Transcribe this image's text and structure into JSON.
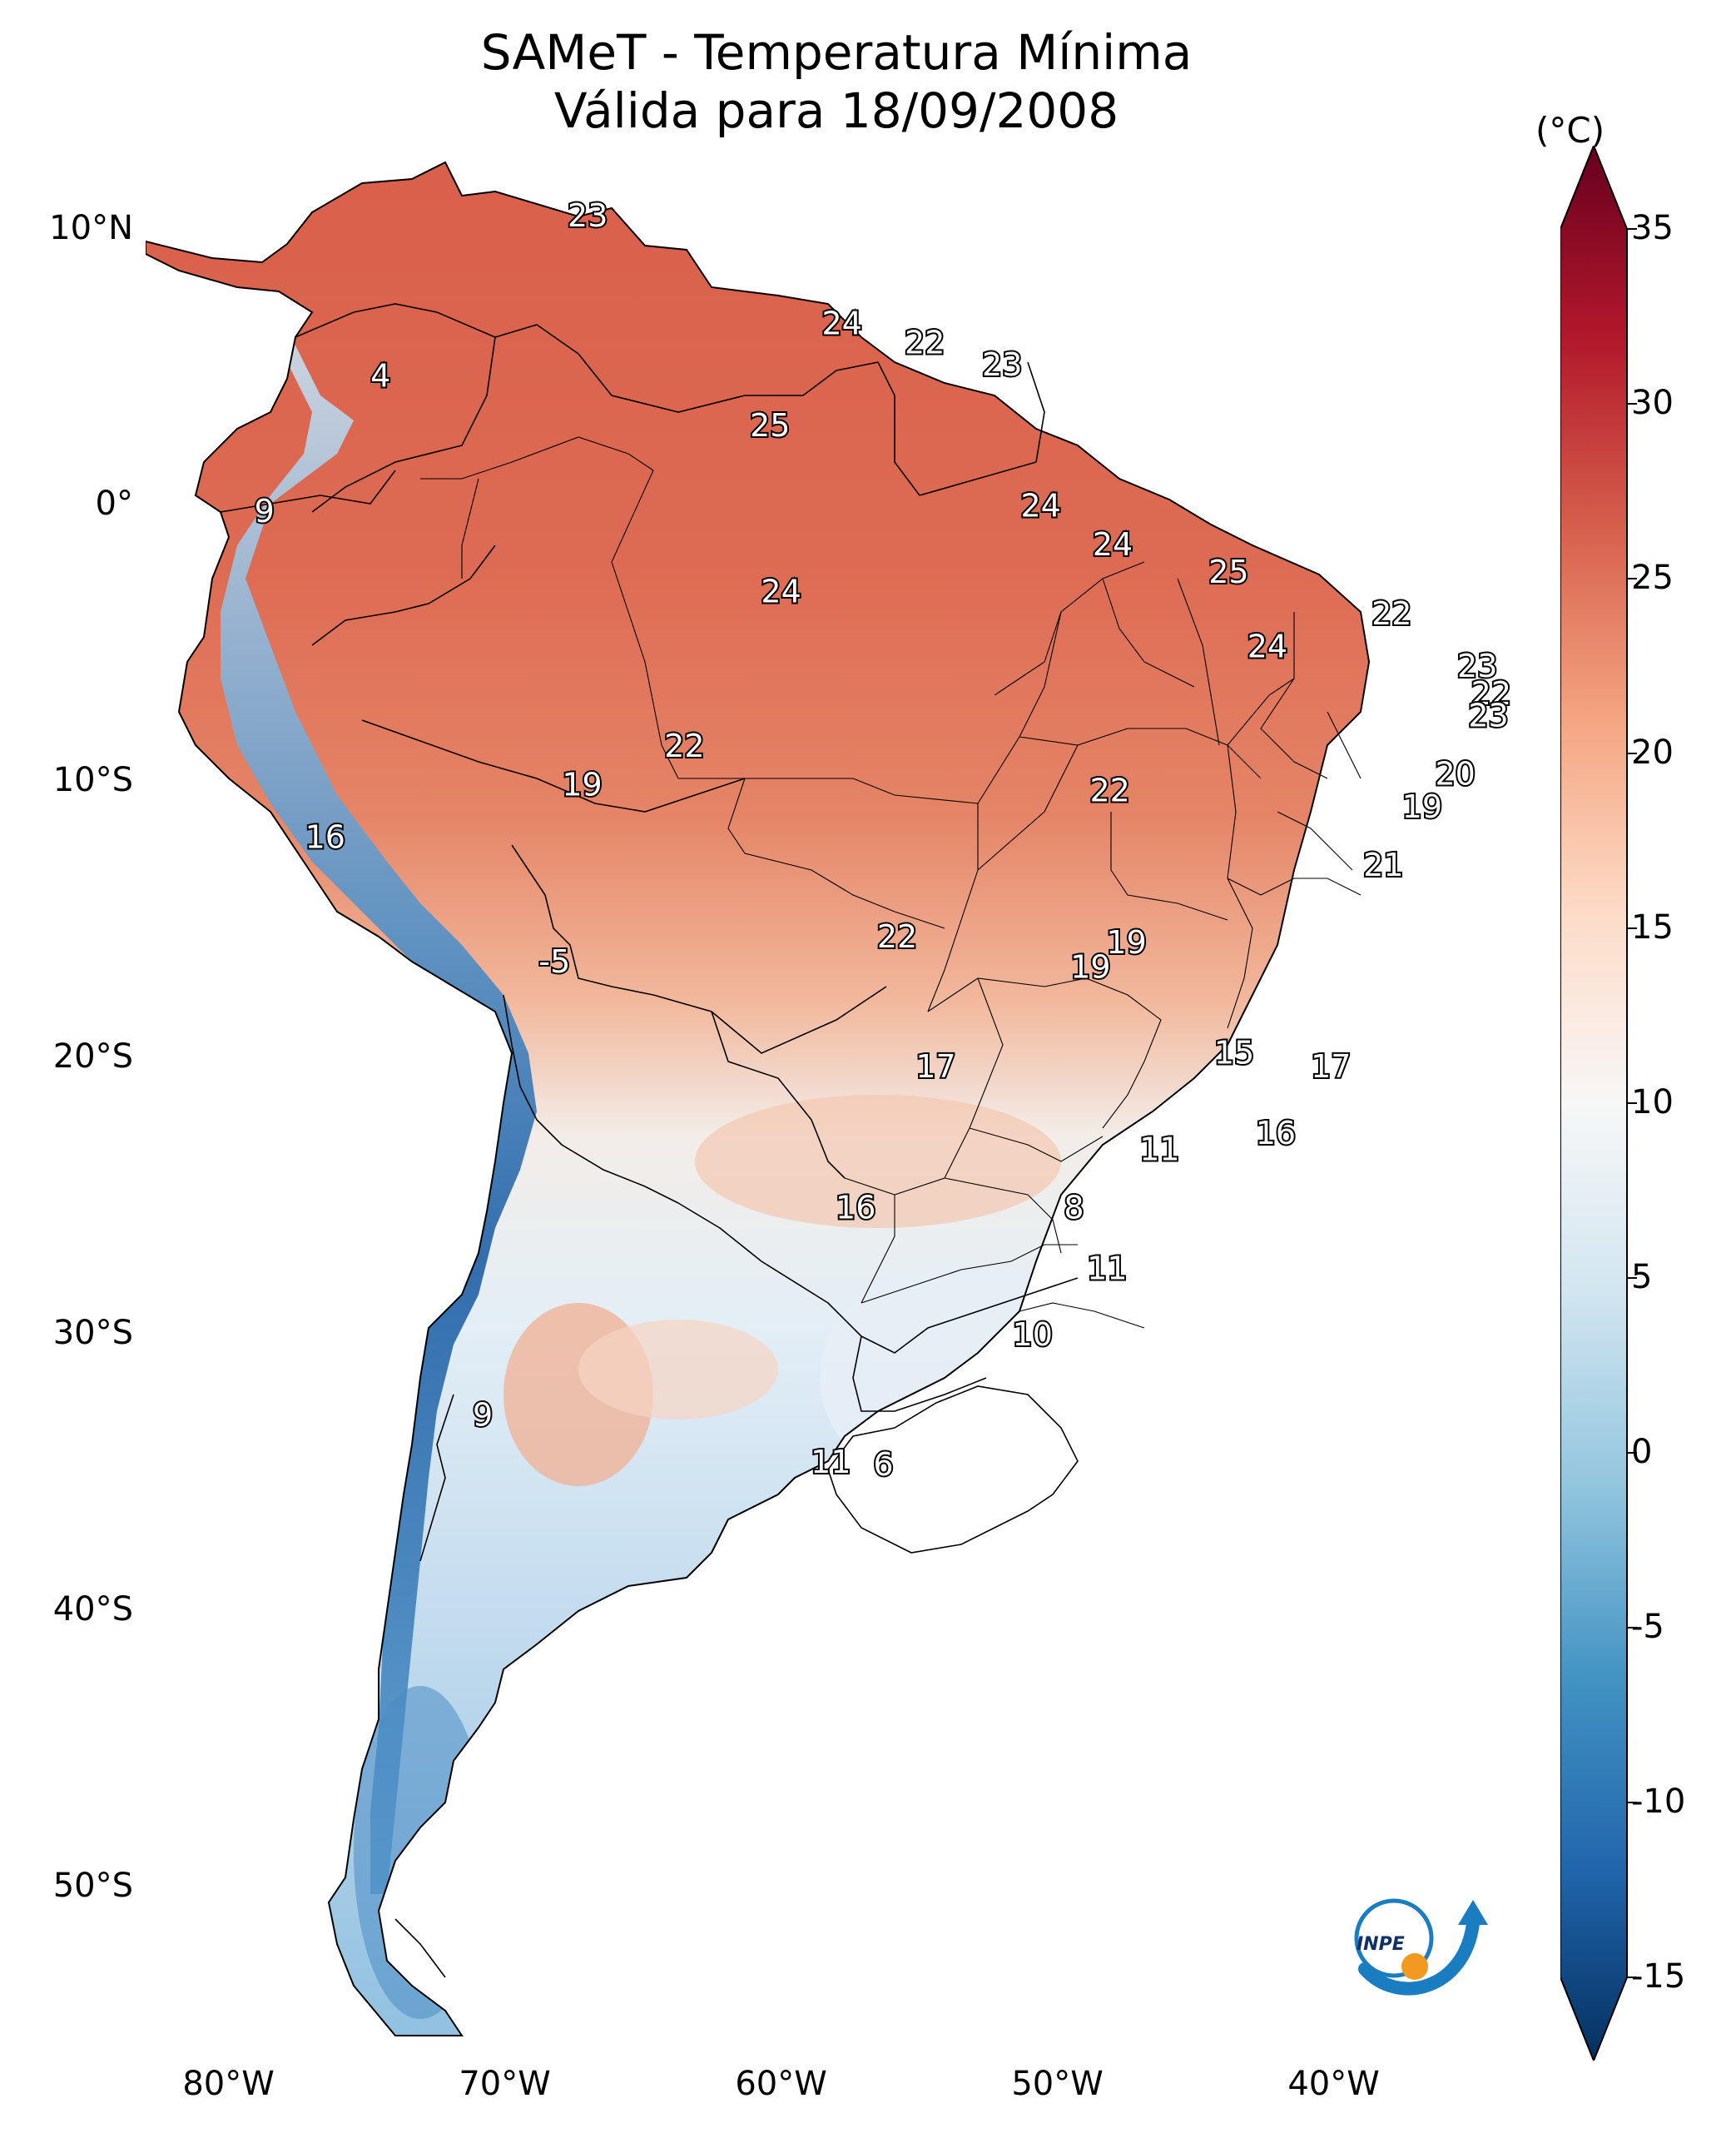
{
  "title": {
    "line1": "SAMeT - Temperatura Mínima",
    "line2": "Válida para 18/09/2008"
  },
  "map": {
    "extent_lon": [
      -83,
      -33
    ],
    "extent_lat": [
      -56,
      13
    ],
    "lat_ticks": [
      "10°N",
      "0°",
      "10°S",
      "20°S",
      "30°S",
      "40°S",
      "50°S"
    ],
    "lon_ticks": [
      "80°W",
      "70°W",
      "60°W",
      "50°W",
      "40°W"
    ],
    "station_labels": [
      {
        "text": "23",
        "lon": -67.0,
        "lat": 10.5
      },
      {
        "text": "24",
        "lon": -57.8,
        "lat": 6.6
      },
      {
        "text": "22",
        "lon": -54.8,
        "lat": 5.9
      },
      {
        "text": "23",
        "lon": -52.0,
        "lat": 5.1
      },
      {
        "text": "4",
        "lon": -74.5,
        "lat": 4.7
      },
      {
        "text": "25",
        "lon": -60.4,
        "lat": 2.9
      },
      {
        "text": "9",
        "lon": -78.7,
        "lat": -0.2
      },
      {
        "text": "24",
        "lon": -50.6,
        "lat": 0.0
      },
      {
        "text": "24",
        "lon": -48.0,
        "lat": -1.4
      },
      {
        "text": "25",
        "lon": -43.8,
        "lat": -2.4
      },
      {
        "text": "24",
        "lon": -60.0,
        "lat": -3.1
      },
      {
        "text": "22",
        "lon": -37.9,
        "lat": -3.9
      },
      {
        "text": "24",
        "lon": -42.4,
        "lat": -5.1
      },
      {
        "text": "23",
        "lon": -34.8,
        "lat": -5.8
      },
      {
        "text": "22",
        "lon": -34.3,
        "lat": -6.8
      },
      {
        "text": "23",
        "lon": -34.4,
        "lat": -7.6
      },
      {
        "text": "22",
        "lon": -63.5,
        "lat": -8.7
      },
      {
        "text": "20",
        "lon": -35.6,
        "lat": -9.7
      },
      {
        "text": "19",
        "lon": -67.2,
        "lat": -10.1
      },
      {
        "text": "22",
        "lon": -48.1,
        "lat": -10.3
      },
      {
        "text": "19",
        "lon": -36.8,
        "lat": -10.9
      },
      {
        "text": "16",
        "lon": -76.5,
        "lat": -12.0
      },
      {
        "text": "21",
        "lon": -38.2,
        "lat": -13.0
      },
      {
        "text": "22",
        "lon": -55.8,
        "lat": -15.6
      },
      {
        "text": "19",
        "lon": -47.5,
        "lat": -15.8
      },
      {
        "text": "-5",
        "lon": -68.2,
        "lat": -16.5
      },
      {
        "text": "19",
        "lon": -48.8,
        "lat": -16.7
      },
      {
        "text": "15",
        "lon": -43.6,
        "lat": -19.8
      },
      {
        "text": "17",
        "lon": -54.4,
        "lat": -20.3
      },
      {
        "text": "17",
        "lon": -40.1,
        "lat": -20.3
      },
      {
        "text": "16",
        "lon": -42.1,
        "lat": -22.7
      },
      {
        "text": "11",
        "lon": -46.3,
        "lat": -23.3
      },
      {
        "text": "16",
        "lon": -57.3,
        "lat": -25.4
      },
      {
        "text": "8",
        "lon": -49.4,
        "lat": -25.4
      },
      {
        "text": "11",
        "lon": -48.2,
        "lat": -27.6
      },
      {
        "text": "10",
        "lon": -50.9,
        "lat": -30.0
      },
      {
        "text": "9",
        "lon": -70.8,
        "lat": -32.9
      },
      {
        "text": "11",
        "lon": -58.2,
        "lat": -34.6
      },
      {
        "text": "6",
        "lon": -56.3,
        "lat": -34.7
      }
    ]
  },
  "colorbar": {
    "unit": "(°C)",
    "range": [
      -15,
      35
    ],
    "ticks": [
      "35",
      "30",
      "25",
      "20",
      "15",
      "10",
      "5",
      "0",
      "-5",
      "-10",
      "-15"
    ],
    "colors": [
      "#053061",
      "#2166ac",
      "#4393c3",
      "#92c5de",
      "#d1e5f0",
      "#f7f7f7",
      "#fddbc7",
      "#f4a582",
      "#d6604d",
      "#b2182b",
      "#67001f"
    ]
  },
  "logo": {
    "text": "INPE"
  }
}
